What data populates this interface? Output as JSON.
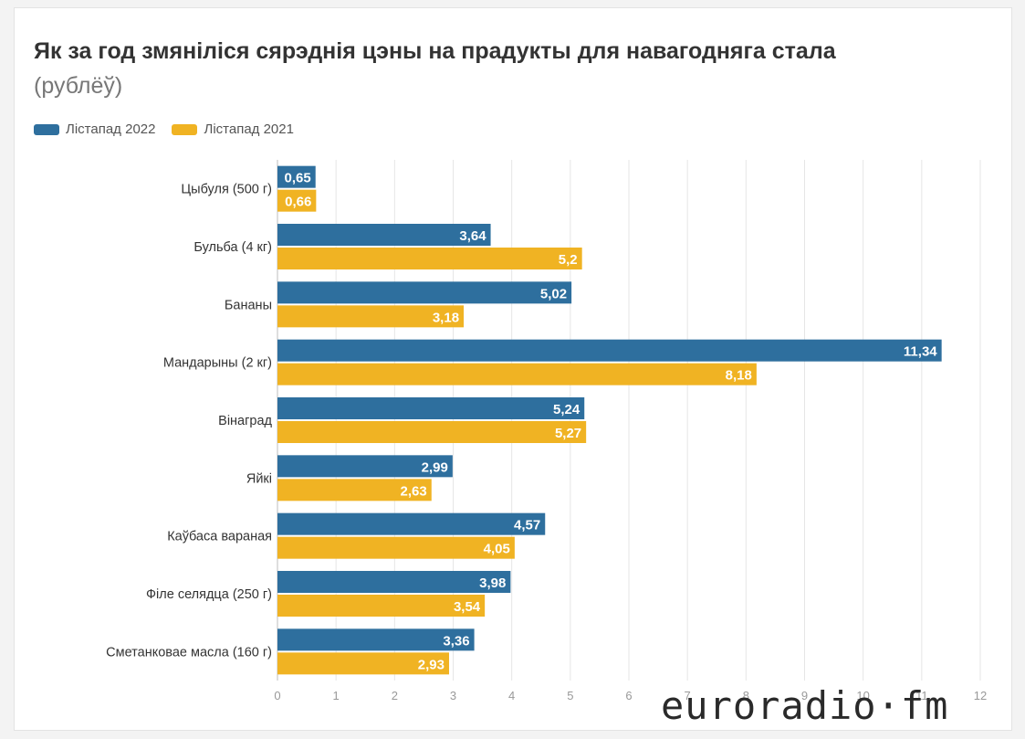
{
  "chart_data": {
    "type": "bar",
    "orientation": "horizontal",
    "title": "Як за год змяніліся сярэднія цэны на прадукты для навагодняга стала",
    "subtitle": "(рублёў)",
    "categories": [
      "Цыбуля (500 г)",
      "Бульба (4 кг)",
      "Бананы",
      "Мандарыны (2 кг)",
      "Вінаград",
      "Яйкі",
      "Каўбаса вараная",
      "Філе селядца (250 г)",
      "Сметанковае масла (160 г)"
    ],
    "series": [
      {
        "name": "Лістапад 2022",
        "color": "#2e6f9e",
        "values": [
          0.65,
          3.64,
          5.02,
          11.34,
          5.24,
          2.99,
          4.57,
          3.98,
          3.36
        ],
        "labels": [
          "0,65",
          "3,64",
          "5,02",
          "11,34",
          "5,24",
          "2,99",
          "4,57",
          "3,98",
          "3,36"
        ]
      },
      {
        "name": "Лістапад 2021",
        "color": "#f0b323",
        "values": [
          0.66,
          5.2,
          3.18,
          8.18,
          5.27,
          2.63,
          4.05,
          3.54,
          2.93
        ],
        "labels": [
          "0,66",
          "5,2",
          "3,18",
          "8,18",
          "5,27",
          "2,63",
          "4,05",
          "3,54",
          "2,93"
        ]
      }
    ],
    "xlim": [
      0,
      12
    ],
    "xticks": [
      0,
      1,
      2,
      3,
      4,
      5,
      6,
      7,
      8,
      9,
      10,
      11,
      12
    ],
    "grid": true,
    "legend_position": "top-left"
  },
  "watermark": "euroradio·fm"
}
